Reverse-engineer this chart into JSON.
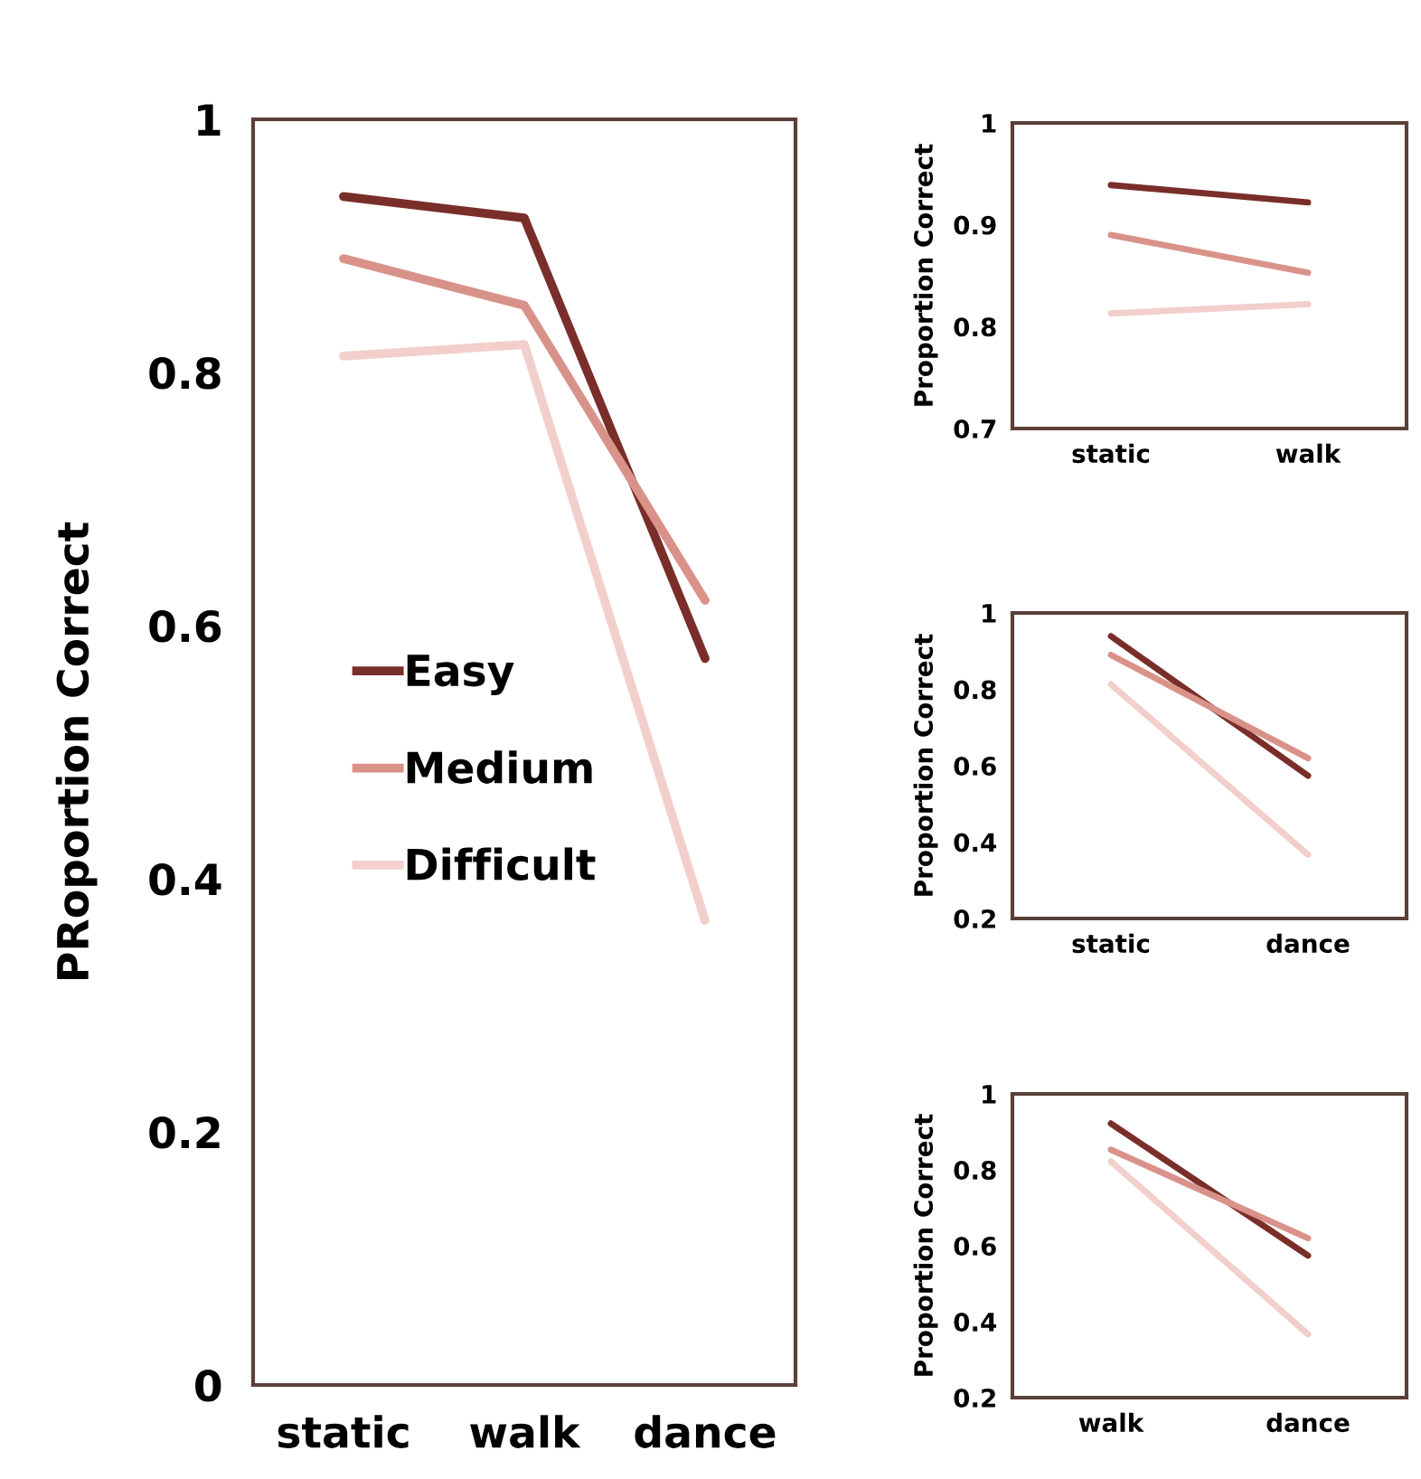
{
  "chart_data": [
    {
      "type": "line",
      "categories": [
        "static",
        "walk",
        "dance"
      ],
      "ylabel": "PRoportion Correct",
      "ylim": [
        0,
        1
      ],
      "yticks": [
        0,
        0.2,
        0.4,
        0.6,
        0.8,
        1
      ],
      "legend": "left",
      "grid": false,
      "series": [
        {
          "name": "Easy",
          "color": "#7a2e2a",
          "values": [
            0.939,
            0.922,
            0.574
          ]
        },
        {
          "name": "Medium",
          "color": "#d9928a",
          "values": [
            0.89,
            0.853,
            0.62
          ]
        },
        {
          "name": "Difficult",
          "color": "#f2cfcb",
          "values": [
            0.813,
            0.822,
            0.367
          ]
        }
      ]
    },
    {
      "type": "line",
      "categories": [
        "static",
        "walk"
      ],
      "ylabel": "Proportion Correct",
      "ylim": [
        0.7,
        1
      ],
      "yticks": [
        0.7,
        0.8,
        0.9,
        1
      ],
      "grid": false,
      "series": [
        {
          "color": "#7a2e2a",
          "values": [
            0.939,
            0.922
          ]
        },
        {
          "color": "#d9928a",
          "values": [
            0.89,
            0.853
          ]
        },
        {
          "color": "#f2cfcb",
          "values": [
            0.813,
            0.822
          ]
        }
      ]
    },
    {
      "type": "line",
      "categories": [
        "static",
        "dance"
      ],
      "ylabel": "Proportion Correct",
      "ylim": [
        0.2,
        1
      ],
      "yticks": [
        0.2,
        0.4,
        0.6,
        0.8,
        1
      ],
      "grid": false,
      "series": [
        {
          "color": "#7a2e2a",
          "values": [
            0.939,
            0.574
          ]
        },
        {
          "color": "#d9928a",
          "values": [
            0.89,
            0.62
          ]
        },
        {
          "color": "#f2cfcb",
          "values": [
            0.813,
            0.367
          ]
        }
      ]
    },
    {
      "type": "line",
      "categories": [
        "walk",
        "dance"
      ],
      "ylabel": "Proportion Correct",
      "ylim": [
        0.2,
        1
      ],
      "yticks": [
        0.2,
        0.4,
        0.6,
        0.8,
        1
      ],
      "grid": false,
      "series": [
        {
          "color": "#7a2e2a",
          "values": [
            0.922,
            0.574
          ]
        },
        {
          "color": "#d9928a",
          "values": [
            0.853,
            0.62
          ]
        },
        {
          "color": "#f2cfcb",
          "values": [
            0.822,
            0.367
          ]
        }
      ]
    }
  ]
}
